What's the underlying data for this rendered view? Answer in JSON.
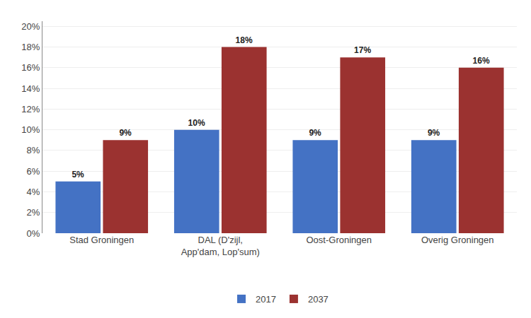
{
  "chart_data": {
    "type": "bar",
    "categories": [
      "Stad Groningen",
      "DAL (D'zijl,\nApp'dam, Lop'sum)",
      "Oost-Groningen",
      "Overig Groningen"
    ],
    "series": [
      {
        "name": "2017",
        "color": "#4472C4",
        "values": [
          0.05,
          0.1,
          0.09,
          0.09
        ],
        "value_labels": [
          "5%",
          "10%",
          "9%",
          "9%"
        ]
      },
      {
        "name": "2037",
        "color": "#9B3230",
        "values": [
          0.09,
          0.18,
          0.17,
          0.16
        ],
        "value_labels": [
          "9%",
          "18%",
          "17%",
          "16%"
        ]
      }
    ],
    "ylim": [
      0,
      0.205
    ],
    "yticks": [
      {
        "value": 0.0,
        "label": "0%"
      },
      {
        "value": 0.02,
        "label": "2%"
      },
      {
        "value": 0.04,
        "label": "4%"
      },
      {
        "value": 0.06,
        "label": "6%"
      },
      {
        "value": 0.08,
        "label": "8%"
      },
      {
        "value": 0.1,
        "label": "10%"
      },
      {
        "value": 0.12,
        "label": "12%"
      },
      {
        "value": 0.14,
        "label": "14%"
      },
      {
        "value": 0.16,
        "label": "16%"
      },
      {
        "value": 0.18,
        "label": "18%"
      },
      {
        "value": 0.2,
        "label": "20%"
      }
    ],
    "grid": true,
    "legend": "bottom",
    "data_labels": true
  }
}
